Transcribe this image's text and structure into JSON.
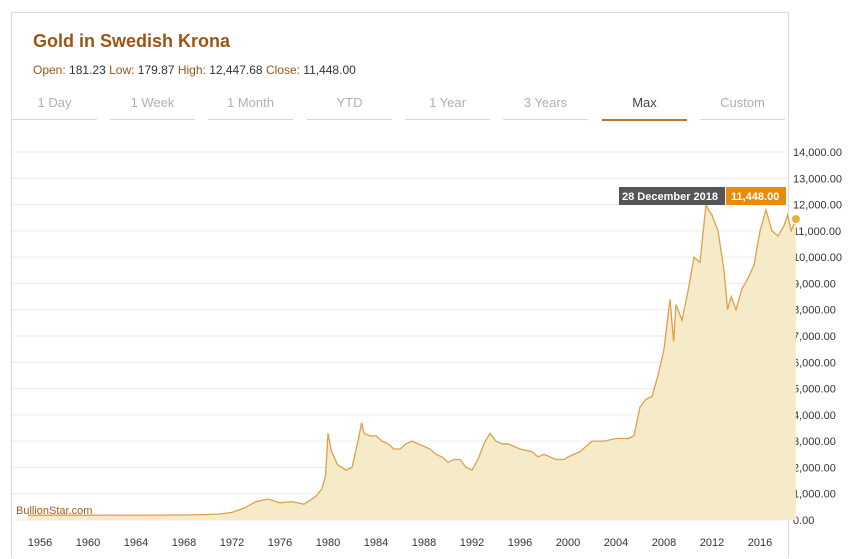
{
  "header": {
    "title": "Gold in Swedish Krona",
    "open_label": "Open:",
    "open": "181.23",
    "low_label": "Low:",
    "low": "179.87",
    "high_label": "High:",
    "high": "12,447.68",
    "close_label": "Close:",
    "close": "11,448.00"
  },
  "tabs": [
    "1 Day",
    "1 Week",
    "1 Month",
    "YTD",
    "1 Year",
    "3 Years",
    "Max",
    "Custom"
  ],
  "active_tab": "Max",
  "tooltip": {
    "date": "28 December 2018",
    "value": "11,448.00"
  },
  "watermark": "BullionStar.com",
  "colors": {
    "line": "#e0a04a",
    "fill": "#f6ebc8",
    "accent": "#e88a0c",
    "title": "#9c5514",
    "tooltip_bg": "#555555"
  },
  "chart_data": {
    "type": "area",
    "xlabel": "",
    "ylabel": "",
    "xlim": [
      1955.0,
      2019.2
    ],
    "ylim": [
      0,
      14000
    ],
    "x_ticks": [
      "1956",
      "1960",
      "1964",
      "1968",
      "1972",
      "1976",
      "1980",
      "1984",
      "1988",
      "1992",
      "1996",
      "2000",
      "2004",
      "2008",
      "2012",
      "2016"
    ],
    "y_ticks": [
      "0.00",
      "1,000.00",
      "2,000.00",
      "3,000.00",
      "4,000.00",
      "5,000.00",
      "6,000.00",
      "7,000.00",
      "8,000.00",
      "9,000.00",
      "10,000.00",
      "11,000.00",
      "12,000.00",
      "13,000.00",
      "14,000.00"
    ],
    "y_axis_position": "right",
    "grid": true,
    "series": [
      {
        "x": [
          1955.0,
          1960,
          1965,
          1968,
          1970,
          1971,
          1972,
          1973,
          1974,
          1975,
          1976,
          1977,
          1978,
          1979,
          1979.5,
          1979.8,
          1980.0,
          1980.3,
          1980.8,
          1981.5,
          1982.0,
          1982.5,
          1982.8,
          1983.0,
          1983.5,
          1984.0,
          1984.5,
          1985.0,
          1985.5,
          1986.0,
          1986.5,
          1987.0,
          1987.5,
          1988.0,
          1988.5,
          1989.0,
          1989.5,
          1990.0,
          1990.5,
          1991.0,
          1991.5,
          1992.0,
          1992.5,
          1993.0,
          1993.5,
          1994.0,
          1994.5,
          1995.0,
          1996.0,
          1997.0,
          1997.5,
          1998.0,
          1999.0,
          1999.7,
          2000.0,
          2001.0,
          2002.0,
          2003.0,
          2004.0,
          2005.0,
          2005.5,
          2006.0,
          2006.5,
          2007.0,
          2007.5,
          2008.0,
          2008.5,
          2008.8,
          2009.0,
          2009.5,
          2010.0,
          2010.5,
          2011.0,
          2011.5,
          2011.7,
          2012.0,
          2012.5,
          2013.0,
          2013.3,
          2013.6,
          2014.0,
          2014.5,
          2015.0,
          2015.5,
          2016.0,
          2016.5,
          2017.0,
          2017.5,
          2018.0,
          2018.3,
          2018.6,
          2018.99
        ],
        "y": [
          181,
          181,
          185,
          190,
          210,
          230,
          290,
          450,
          700,
          800,
          650,
          700,
          600,
          900,
          1200,
          1700,
          3300,
          2600,
          2100,
          1900,
          2000,
          3000,
          3700,
          3300,
          3200,
          3200,
          3000,
          2900,
          2700,
          2700,
          2900,
          3000,
          2900,
          2800,
          2700,
          2500,
          2400,
          2200,
          2300,
          2300,
          2000,
          1900,
          2300,
          2900,
          3300,
          3000,
          2900,
          2900,
          2700,
          2600,
          2400,
          2500,
          2300,
          2300,
          2400,
          2600,
          3000,
          3000,
          3100,
          3100,
          3200,
          4300,
          4600,
          4700,
          5500,
          6500,
          8400,
          6800,
          8200,
          7600,
          8700,
          10000,
          9800,
          12000,
          11800,
          11600,
          11000,
          9500,
          8000,
          8500,
          8000,
          8800,
          9200,
          9700,
          11000,
          11800,
          11000,
          10800,
          11200,
          11600,
          11000,
          11448
        ]
      }
    ]
  }
}
